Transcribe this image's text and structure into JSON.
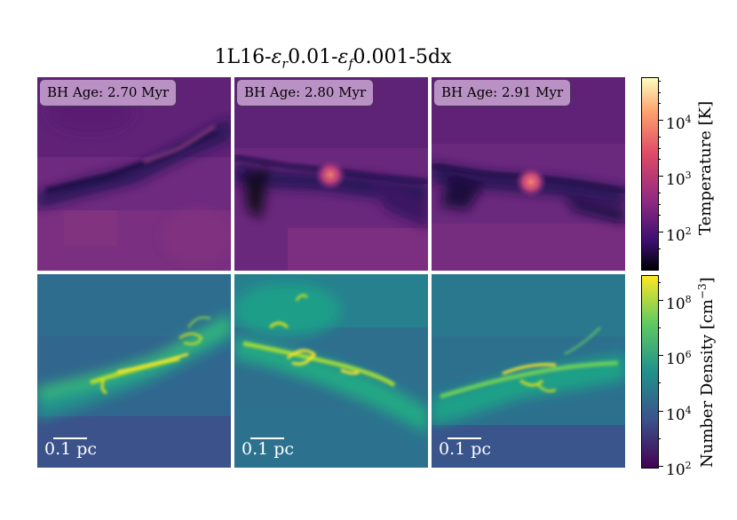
{
  "figure": {
    "title": "1L16-εr0.01-εf0.001-5dx",
    "title_parts": {
      "a": "1L16-",
      "eps1": "ε",
      "sub1": "r",
      "b": "0.01-",
      "eps2": "ε",
      "sub2": "f",
      "c": "0.001-5dx"
    }
  },
  "panels": [
    {
      "age_label": "BH Age: 2.70 Myr"
    },
    {
      "age_label": "BH Age: 2.80 Myr"
    },
    {
      "age_label": "BH Age: 2.91 Myr"
    }
  ],
  "scale_bar": {
    "label": "0.1 pc"
  },
  "temperature_colorbar": {
    "label": "Temperature [K]",
    "colormap": "magma",
    "colors": [
      "#000004",
      "#3b0f70",
      "#8c2981",
      "#de4968",
      "#fe9f6d",
      "#fcfdbf"
    ],
    "ticks": [
      {
        "base": "10",
        "exp": "2"
      },
      {
        "base": "10",
        "exp": "3"
      },
      {
        "base": "10",
        "exp": "4"
      }
    ]
  },
  "density_colorbar": {
    "label_main": "Number Density [cm",
    "label_exp": "−3",
    "label_end": "]",
    "colormap": "viridis",
    "colors": [
      "#440154",
      "#3b528b",
      "#21918c",
      "#5ec962",
      "#fde725"
    ],
    "ticks": [
      {
        "base": "10",
        "exp": "2"
      },
      {
        "base": "10",
        "exp": "4"
      },
      {
        "base": "10",
        "exp": "6"
      },
      {
        "base": "10",
        "exp": "8"
      }
    ]
  }
}
